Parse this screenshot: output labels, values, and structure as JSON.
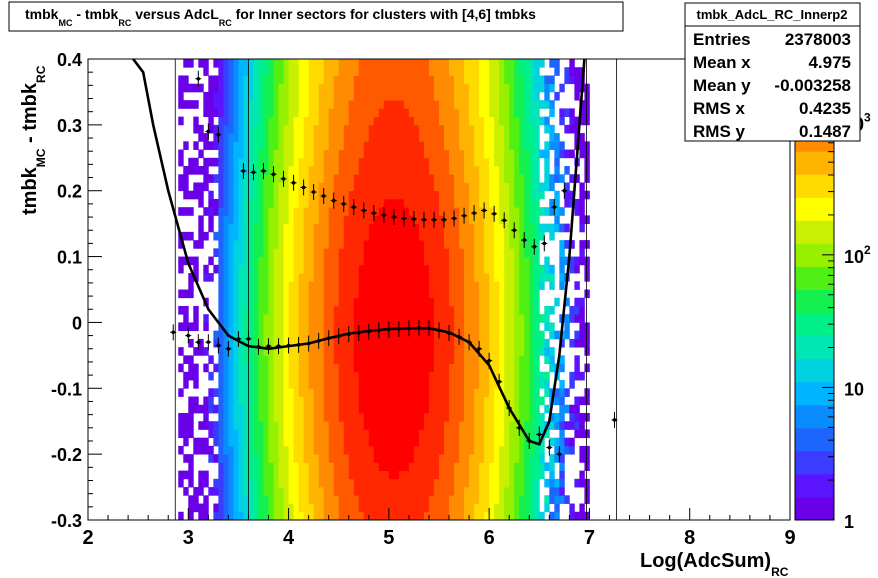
{
  "title": {
    "parts": [
      {
        "text": "tmbk",
        "sub": "MC"
      },
      {
        "text": " - tmbk",
        "sub": "RC"
      },
      {
        "text": " versus AdcL",
        "sub": "RC"
      },
      {
        "text": " for Inner sectors for clusters with [4,6] tmbks",
        "sub": ""
      }
    ]
  },
  "stats": {
    "name": "tmbk_AdcL_RC_Innerp2",
    "rows": [
      {
        "label": "Entries",
        "value": "2378003"
      },
      {
        "label": "Mean x",
        "value": "4.975"
      },
      {
        "label": "Mean y",
        "value": "-0.003258"
      },
      {
        "label": "RMS x",
        "value": "0.4235"
      },
      {
        "label": "RMS y",
        "value": "0.1487"
      }
    ]
  },
  "colors": {
    "palette": [
      "#6a00e8",
      "#5a14ff",
      "#3a3cff",
      "#1e64ff",
      "#0a8cff",
      "#00b4ff",
      "#00d2e0",
      "#00e6b4",
      "#00f088",
      "#14f050",
      "#50f014",
      "#96f000",
      "#c8f000",
      "#ffff00",
      "#ffdc00",
      "#ffb400",
      "#ff8c00",
      "#ff5a00",
      "#ff2800",
      "#ff0000"
    ],
    "profile": "#000000",
    "fit": "#000000"
  },
  "chart_data": {
    "type": "heatmap",
    "xlabel": {
      "text": "Log(AdcSum)",
      "sub": "RC"
    },
    "ylabel": {
      "parts": [
        {
          "text": "tmbk",
          "sub": "MC"
        },
        {
          "text": " - tmbk",
          "sub": "RC"
        }
      ]
    },
    "xlim": [
      2,
      9
    ],
    "ylim": [
      -0.3,
      0.4
    ],
    "x_ticks": [
      2,
      3,
      4,
      5,
      6,
      7,
      8,
      9
    ],
    "y_ticks": [
      -0.3,
      -0.2,
      -0.1,
      0,
      0.1,
      0.2,
      0.3,
      0.4
    ],
    "x_tick_labels": [
      "2",
      "3",
      "4",
      "5",
      "6",
      "7",
      "8",
      "9"
    ],
    "y_tick_labels": [
      "-0.3",
      "-0.2",
      "-0.1",
      "0",
      "0.1",
      "0.2",
      "0.3",
      "0.4"
    ],
    "z_scale": "log",
    "z_range": [
      1,
      3000
    ],
    "z_tick_labels": [
      {
        "base": "10",
        "exp": "3"
      },
      {
        "base": "10",
        "exp": "2"
      },
      {
        "base": "10",
        "exp": ""
      },
      {
        "base": "1",
        "exp": ""
      }
    ],
    "z_tick_values": [
      1000,
      100,
      10,
      1
    ],
    "density": {
      "x_center": 5.05,
      "x_sigma": 0.48,
      "y_center": -0.02,
      "y_sigma": 0.2,
      "peak": 2800
    },
    "profile_lower": [
      {
        "x": 2.85,
        "y": -0.015
      },
      {
        "x": 3.0,
        "y": -0.02
      },
      {
        "x": 3.1,
        "y": -0.03
      },
      {
        "x": 3.2,
        "y": -0.03
      },
      {
        "x": 3.3,
        "y": -0.035
      },
      {
        "x": 3.4,
        "y": -0.04
      },
      {
        "x": 3.5,
        "y": -0.025
      },
      {
        "x": 3.6,
        "y": -0.025
      },
      {
        "x": 3.7,
        "y": -0.037
      },
      {
        "x": 3.8,
        "y": -0.036
      },
      {
        "x": 3.9,
        "y": -0.036
      },
      {
        "x": 4.0,
        "y": -0.035
      },
      {
        "x": 4.1,
        "y": -0.034
      },
      {
        "x": 4.2,
        "y": -0.032
      },
      {
        "x": 4.3,
        "y": -0.028
      },
      {
        "x": 4.4,
        "y": -0.024
      },
      {
        "x": 4.5,
        "y": -0.021
      },
      {
        "x": 4.6,
        "y": -0.018
      },
      {
        "x": 4.7,
        "y": -0.016
      },
      {
        "x": 4.8,
        "y": -0.014
      },
      {
        "x": 4.9,
        "y": -0.012
      },
      {
        "x": 5.0,
        "y": -0.011
      },
      {
        "x": 5.1,
        "y": -0.01
      },
      {
        "x": 5.2,
        "y": -0.009
      },
      {
        "x": 5.3,
        "y": -0.008
      },
      {
        "x": 5.4,
        "y": -0.009
      },
      {
        "x": 5.5,
        "y": -0.012
      },
      {
        "x": 5.6,
        "y": -0.016
      },
      {
        "x": 5.7,
        "y": -0.022
      },
      {
        "x": 5.8,
        "y": -0.03
      },
      {
        "x": 5.9,
        "y": -0.04
      },
      {
        "x": 6.0,
        "y": -0.058
      },
      {
        "x": 6.1,
        "y": -0.09
      },
      {
        "x": 6.2,
        "y": -0.13
      },
      {
        "x": 6.3,
        "y": -0.16
      },
      {
        "x": 6.4,
        "y": -0.18
      },
      {
        "x": 6.5,
        "y": -0.17
      },
      {
        "x": 6.6,
        "y": -0.19
      },
      {
        "x": 6.7,
        "y": -0.2
      },
      {
        "x": 7.25,
        "y": -0.148
      }
    ],
    "profile_upper": [
      {
        "x": 3.1,
        "y": 0.37
      },
      {
        "x": 3.2,
        "y": 0.29
      },
      {
        "x": 3.3,
        "y": 0.285
      },
      {
        "x": 3.55,
        "y": 0.23
      },
      {
        "x": 3.65,
        "y": 0.228
      },
      {
        "x": 3.75,
        "y": 0.23
      },
      {
        "x": 3.85,
        "y": 0.225
      },
      {
        "x": 3.95,
        "y": 0.218
      },
      {
        "x": 4.05,
        "y": 0.212
      },
      {
        "x": 4.15,
        "y": 0.205
      },
      {
        "x": 4.25,
        "y": 0.198
      },
      {
        "x": 4.35,
        "y": 0.192
      },
      {
        "x": 4.45,
        "y": 0.185
      },
      {
        "x": 4.55,
        "y": 0.18
      },
      {
        "x": 4.65,
        "y": 0.175
      },
      {
        "x": 4.75,
        "y": 0.17
      },
      {
        "x": 4.85,
        "y": 0.166
      },
      {
        "x": 4.95,
        "y": 0.163
      },
      {
        "x": 5.05,
        "y": 0.16
      },
      {
        "x": 5.15,
        "y": 0.158
      },
      {
        "x": 5.25,
        "y": 0.157
      },
      {
        "x": 5.35,
        "y": 0.156
      },
      {
        "x": 5.45,
        "y": 0.156
      },
      {
        "x": 5.55,
        "y": 0.156
      },
      {
        "x": 5.65,
        "y": 0.158
      },
      {
        "x": 5.75,
        "y": 0.162
      },
      {
        "x": 5.85,
        "y": 0.166
      },
      {
        "x": 5.95,
        "y": 0.17
      },
      {
        "x": 6.05,
        "y": 0.165
      },
      {
        "x": 6.15,
        "y": 0.155
      },
      {
        "x": 6.25,
        "y": 0.14
      },
      {
        "x": 6.35,
        "y": 0.125
      },
      {
        "x": 6.45,
        "y": 0.115
      },
      {
        "x": 6.55,
        "y": 0.12
      },
      {
        "x": 6.65,
        "y": 0.175
      },
      {
        "x": 6.75,
        "y": 0.2
      }
    ],
    "fit_curve": [
      {
        "x": 2.45,
        "y": 0.41
      },
      {
        "x": 2.55,
        "y": 0.38
      },
      {
        "x": 2.65,
        "y": 0.3
      },
      {
        "x": 2.8,
        "y": 0.2
      },
      {
        "x": 3.0,
        "y": 0.09
      },
      {
        "x": 3.2,
        "y": 0.02
      },
      {
        "x": 3.4,
        "y": -0.02
      },
      {
        "x": 3.6,
        "y": -0.036
      },
      {
        "x": 3.8,
        "y": -0.04
      },
      {
        "x": 4.0,
        "y": -0.036
      },
      {
        "x": 4.2,
        "y": -0.032
      },
      {
        "x": 4.4,
        "y": -0.024
      },
      {
        "x": 4.6,
        "y": -0.017
      },
      {
        "x": 4.8,
        "y": -0.013
      },
      {
        "x": 5.0,
        "y": -0.01
      },
      {
        "x": 5.2,
        "y": -0.009
      },
      {
        "x": 5.4,
        "y": -0.009
      },
      {
        "x": 5.6,
        "y": -0.015
      },
      {
        "x": 5.8,
        "y": -0.03
      },
      {
        "x": 6.0,
        "y": -0.065
      },
      {
        "x": 6.2,
        "y": -0.13
      },
      {
        "x": 6.4,
        "y": -0.18
      },
      {
        "x": 6.5,
        "y": -0.185
      },
      {
        "x": 6.6,
        "y": -0.15
      },
      {
        "x": 6.7,
        "y": -0.05
      },
      {
        "x": 6.8,
        "y": 0.1
      },
      {
        "x": 6.9,
        "y": 0.3
      },
      {
        "x": 6.95,
        "y": 0.41
      }
    ]
  }
}
